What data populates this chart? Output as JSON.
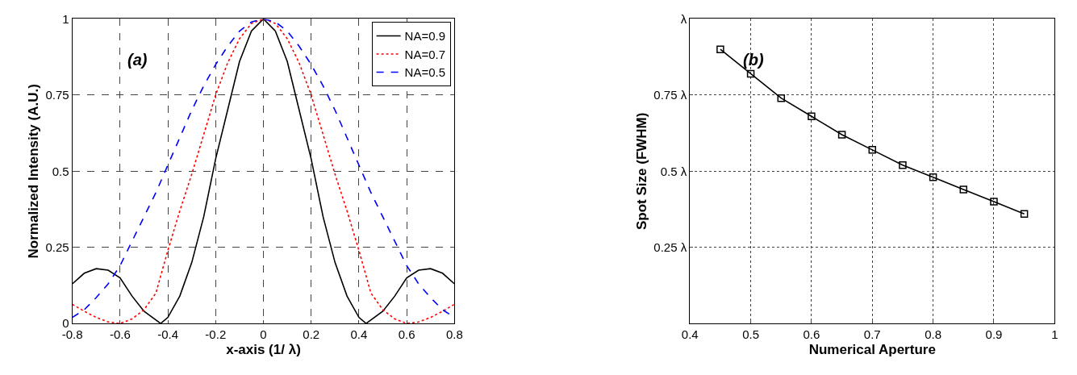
{
  "chart_data": [
    {
      "type": "line",
      "xlabel": "x-axis (1/ λ)",
      "ylabel": "Normalized Intensity (A.U.)",
      "annotations": [
        "(a)"
      ],
      "x": [
        -0.8,
        -0.75,
        -0.7,
        -0.65,
        -0.6,
        -0.55,
        -0.5,
        -0.45,
        -0.4,
        -0.35,
        -0.3,
        -0.25,
        -0.2,
        -0.15,
        -0.1,
        -0.05,
        0,
        0.05,
        0.1,
        0.15,
        0.2,
        0.25,
        0.3,
        0.35,
        0.4,
        0.45,
        0.5,
        0.55,
        0.6,
        0.65,
        0.7,
        0.75,
        0.8
      ],
      "series": [
        {
          "name": "NA=0.9",
          "color": "#000000",
          "line_style": "solid",
          "x": [
            -0.8,
            -0.75,
            -0.7,
            -0.65,
            -0.6,
            -0.55,
            -0.5,
            -0.43,
            -0.4,
            -0.35,
            -0.3,
            -0.25,
            -0.2,
            -0.15,
            -0.1,
            -0.05,
            0,
            0.05,
            0.1,
            0.15,
            0.2,
            0.25,
            0.3,
            0.35,
            0.4,
            0.43,
            0.5,
            0.55,
            0.6,
            0.65,
            0.7,
            0.75,
            0.8
          ],
          "values": [
            0.13,
            0.165,
            0.18,
            0.175,
            0.15,
            0.09,
            0.04,
            0,
            0.02,
            0.09,
            0.2,
            0.35,
            0.54,
            0.7,
            0.86,
            0.96,
            1,
            0.96,
            0.86,
            0.7,
            0.54,
            0.35,
            0.2,
            0.09,
            0.02,
            0,
            0.04,
            0.09,
            0.15,
            0.175,
            0.18,
            0.165,
            0.13
          ]
        },
        {
          "name": "NA=0.7",
          "color": "#ff0000",
          "line_style": "dotted",
          "values": [
            0.063,
            0.04,
            0.02,
            0.005,
            0,
            0.015,
            0.045,
            0.1,
            0.24,
            0.37,
            0.49,
            0.62,
            0.75,
            0.855,
            0.935,
            0.985,
            1,
            0.985,
            0.935,
            0.855,
            0.75,
            0.62,
            0.49,
            0.37,
            0.24,
            0.1,
            0.045,
            0.015,
            0,
            0.005,
            0.02,
            0.04,
            0.063
          ]
        },
        {
          "name": "NA=0.5",
          "color": "#0000ff",
          "line_style": "dashed",
          "values": [
            0.02,
            0.045,
            0.085,
            0.13,
            0.19,
            0.27,
            0.35,
            0.43,
            0.52,
            0.61,
            0.7,
            0.78,
            0.85,
            0.91,
            0.96,
            0.99,
            1,
            0.99,
            0.96,
            0.91,
            0.85,
            0.78,
            0.7,
            0.61,
            0.52,
            0.43,
            0.35,
            0.27,
            0.19,
            0.13,
            0.085,
            0.045,
            0.02
          ]
        }
      ],
      "xlim": [
        -0.8,
        0.8
      ],
      "xticks": [
        -0.8,
        -0.6,
        -0.4,
        -0.2,
        0,
        0.2,
        0.4,
        0.6,
        0.8
      ],
      "ylim": [
        0,
        1
      ],
      "yticks": [
        0,
        0.25,
        0.5,
        0.75,
        1
      ],
      "grid": true,
      "legend": "top right",
      "marker": "none"
    },
    {
      "type": "line",
      "xlabel": "Numerical Aperture",
      "ylabel": "Spot Size (FWHM)",
      "annotations": [
        "(b)"
      ],
      "x": [
        0.45,
        0.5,
        0.55,
        0.6,
        0.65,
        0.7,
        0.75,
        0.8,
        0.85,
        0.9,
        0.95
      ],
      "series": [
        {
          "color": "#000000",
          "values": [
            0.9,
            0.82,
            0.74,
            0.68,
            0.62,
            0.57,
            0.52,
            0.48,
            0.44,
            0.4,
            0.36
          ]
        }
      ],
      "xlim": [
        0.4,
        1
      ],
      "xticks": [
        0.4,
        0.5,
        0.6,
        0.7,
        0.8,
        0.9,
        1
      ],
      "ylim": [
        0,
        1
      ],
      "yticks": [
        {
          "value": 0.25,
          "label": "0.25 λ"
        },
        {
          "value": 0.5,
          "label": "0.5 λ"
        },
        {
          "value": 0.75,
          "label": "0.75 λ"
        },
        {
          "value": 1,
          "label": "λ"
        }
      ],
      "grid": true,
      "legend": false,
      "marker": "square",
      "line_style": "solid"
    }
  ]
}
